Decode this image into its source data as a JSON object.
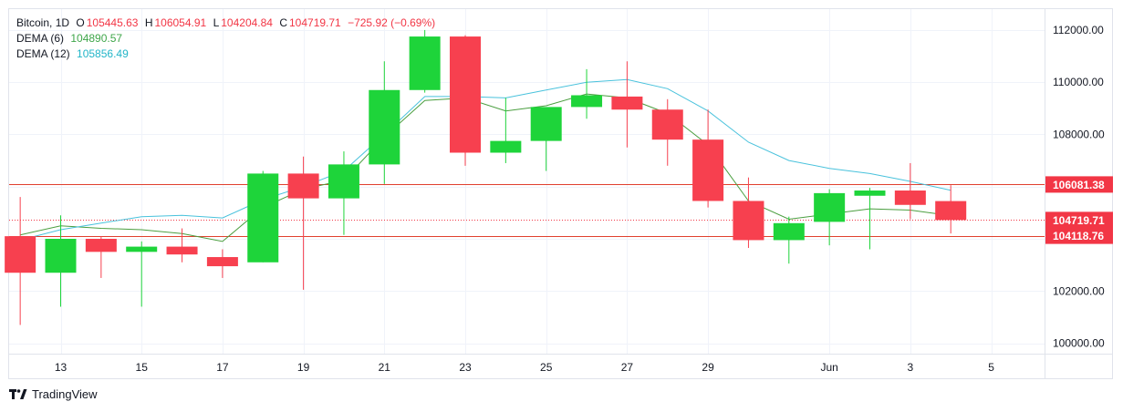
{
  "legend": {
    "symbol": "Bitcoin",
    "interval": "1D",
    "o_label": "O",
    "o_value": "105445.63",
    "h_label": "H",
    "h_value": "106054.91",
    "l_label": "L",
    "l_value": "104204.84",
    "c_label": "C",
    "c_value": "104719.71",
    "change": "−725.92 (−0.69%)",
    "dema6_label": "DEMA (6)",
    "dema6_value": "104890.57",
    "dema12_label": "DEMA (12)",
    "dema12_value": "105856.49"
  },
  "brand": "TradingView",
  "colors": {
    "up": "#1ed43a",
    "down": "#f7404f",
    "dema6": "#4a9e3f",
    "dema12": "#49c2dc",
    "hline": "#e0402f",
    "last_price": "#f23645"
  },
  "chart_data": {
    "type": "candlestick",
    "ylim": [
      99600,
      112800
    ],
    "y_ticks": [
      100000,
      102000,
      104000,
      106000,
      108000,
      110000,
      112000
    ],
    "y_tick_labels": [
      "100000.00",
      "102000.00",
      "",
      "",
      "108000.00",
      "110000.00",
      "112000.00"
    ],
    "x_tick_labels": [
      {
        "day": 13,
        "label": "13"
      },
      {
        "day": 15,
        "label": "15"
      },
      {
        "day": 17,
        "label": "17"
      },
      {
        "day": 19,
        "label": "19"
      },
      {
        "day": 21,
        "label": "21"
      },
      {
        "day": 23,
        "label": "23"
      },
      {
        "day": 25,
        "label": "25"
      },
      {
        "day": 27,
        "label": "27"
      },
      {
        "day": 29,
        "label": "29"
      },
      {
        "day": 32,
        "label": "Jun"
      },
      {
        "day": 34,
        "label": "3"
      },
      {
        "day": 36,
        "label": "5"
      }
    ],
    "candles": [
      {
        "day": 12,
        "open": 104100,
        "high": 105600,
        "low": 100700,
        "close": 102700
      },
      {
        "day": 13,
        "open": 102700,
        "high": 104900,
        "low": 101400,
        "close": 104000
      },
      {
        "day": 14,
        "open": 104000,
        "high": 104100,
        "low": 102500,
        "close": 103500
      },
      {
        "day": 15,
        "open": 103500,
        "high": 103900,
        "low": 101400,
        "close": 103700
      },
      {
        "day": 16,
        "open": 103700,
        "high": 104400,
        "low": 103100,
        "close": 103400
      },
      {
        "day": 17,
        "open": 103300,
        "high": 103600,
        "low": 102500,
        "close": 102950
      },
      {
        "day": 18,
        "open": 103100,
        "high": 106600,
        "low": 103100,
        "close": 106500
      },
      {
        "day": 19,
        "open": 106500,
        "high": 107150,
        "low": 102050,
        "close": 105550
      },
      {
        "day": 20,
        "open": 105550,
        "high": 107350,
        "low": 104150,
        "close": 106850
      },
      {
        "day": 21,
        "open": 106850,
        "high": 110800,
        "low": 106100,
        "close": 109700
      },
      {
        "day": 22,
        "open": 109700,
        "high": 112000,
        "low": 109600,
        "close": 111750
      },
      {
        "day": 23,
        "open": 111750,
        "high": 111800,
        "low": 106800,
        "close": 107300
      },
      {
        "day": 24,
        "open": 107300,
        "high": 109400,
        "low": 106900,
        "close": 107750
      },
      {
        "day": 25,
        "open": 107750,
        "high": 109000,
        "low": 106600,
        "close": 109050
      },
      {
        "day": 26,
        "open": 109050,
        "high": 110500,
        "low": 108600,
        "close": 109500
      },
      {
        "day": 27,
        "open": 109450,
        "high": 110800,
        "low": 107500,
        "close": 108950
      },
      {
        "day": 28,
        "open": 108950,
        "high": 109350,
        "low": 106800,
        "close": 107800
      },
      {
        "day": 29,
        "open": 107800,
        "high": 108950,
        "low": 105200,
        "close": 105450
      },
      {
        "day": 30,
        "open": 105450,
        "high": 106350,
        "low": 103650,
        "close": 103950
      },
      {
        "day": 31,
        "open": 103950,
        "high": 104850,
        "low": 103050,
        "close": 104600
      },
      {
        "day": 32,
        "open": 104650,
        "high": 105900,
        "low": 103750,
        "close": 105750
      },
      {
        "day": 33,
        "open": 105650,
        "high": 105950,
        "low": 103600,
        "close": 105850
      },
      {
        "day": 34,
        "open": 105850,
        "high": 106900,
        "low": 104750,
        "close": 105300
      },
      {
        "day": 35,
        "open": 105445.63,
        "high": 106054.91,
        "low": 104204.84,
        "close": 104719.71
      }
    ],
    "series": [
      {
        "name": "DEMA (6)",
        "values": [
          {
            "day": 12,
            "value": 104150
          },
          {
            "day": 13,
            "value": 104500
          },
          {
            "day": 14,
            "value": 104400
          },
          {
            "day": 15,
            "value": 104350
          },
          {
            "day": 16,
            "value": 104200
          },
          {
            "day": 17,
            "value": 103900
          },
          {
            "day": 18,
            "value": 105200
          },
          {
            "day": 19,
            "value": 105900
          },
          {
            "day": 20,
            "value": 106250
          },
          {
            "day": 21,
            "value": 107900
          },
          {
            "day": 22,
            "value": 109300
          },
          {
            "day": 23,
            "value": 109400
          },
          {
            "day": 24,
            "value": 108900
          },
          {
            "day": 25,
            "value": 109100
          },
          {
            "day": 26,
            "value": 109550
          },
          {
            "day": 27,
            "value": 109400
          },
          {
            "day": 28,
            "value": 108800
          },
          {
            "day": 29,
            "value": 107600
          },
          {
            "day": 30,
            "value": 105450
          },
          {
            "day": 31,
            "value": 104750
          },
          {
            "day": 32,
            "value": 104950
          },
          {
            "day": 33,
            "value": 105150
          },
          {
            "day": 34,
            "value": 105100
          },
          {
            "day": 35,
            "value": 104890.57
          }
        ]
      },
      {
        "name": "DEMA (12)",
        "values": [
          {
            "day": 12,
            "value": 103950
          },
          {
            "day": 13,
            "value": 104350
          },
          {
            "day": 14,
            "value": 104600
          },
          {
            "day": 15,
            "value": 104850
          },
          {
            "day": 16,
            "value": 104900
          },
          {
            "day": 17,
            "value": 104800
          },
          {
            "day": 18,
            "value": 105500
          },
          {
            "day": 19,
            "value": 106000
          },
          {
            "day": 20,
            "value": 106600
          },
          {
            "day": 21,
            "value": 108000
          },
          {
            "day": 22,
            "value": 109450
          },
          {
            "day": 23,
            "value": 109450
          },
          {
            "day": 24,
            "value": 109400
          },
          {
            "day": 25,
            "value": 109700
          },
          {
            "day": 26,
            "value": 110000
          },
          {
            "day": 27,
            "value": 110100
          },
          {
            "day": 28,
            "value": 109750
          },
          {
            "day": 29,
            "value": 108900
          },
          {
            "day": 30,
            "value": 107700
          },
          {
            "day": 31,
            "value": 107000
          },
          {
            "day": 32,
            "value": 106700
          },
          {
            "day": 33,
            "value": 106500
          },
          {
            "day": 34,
            "value": 106200
          },
          {
            "day": 35,
            "value": 105856.49
          }
        ]
      }
    ],
    "hlines": [
      {
        "value": 106081.38,
        "label": "106081.38",
        "style": "solid"
      },
      {
        "value": 104118.76,
        "label": "104118.76",
        "style": "solid"
      }
    ],
    "last_price": {
      "value": 104719.71,
      "label": "104719.71",
      "style": "dotted"
    }
  }
}
